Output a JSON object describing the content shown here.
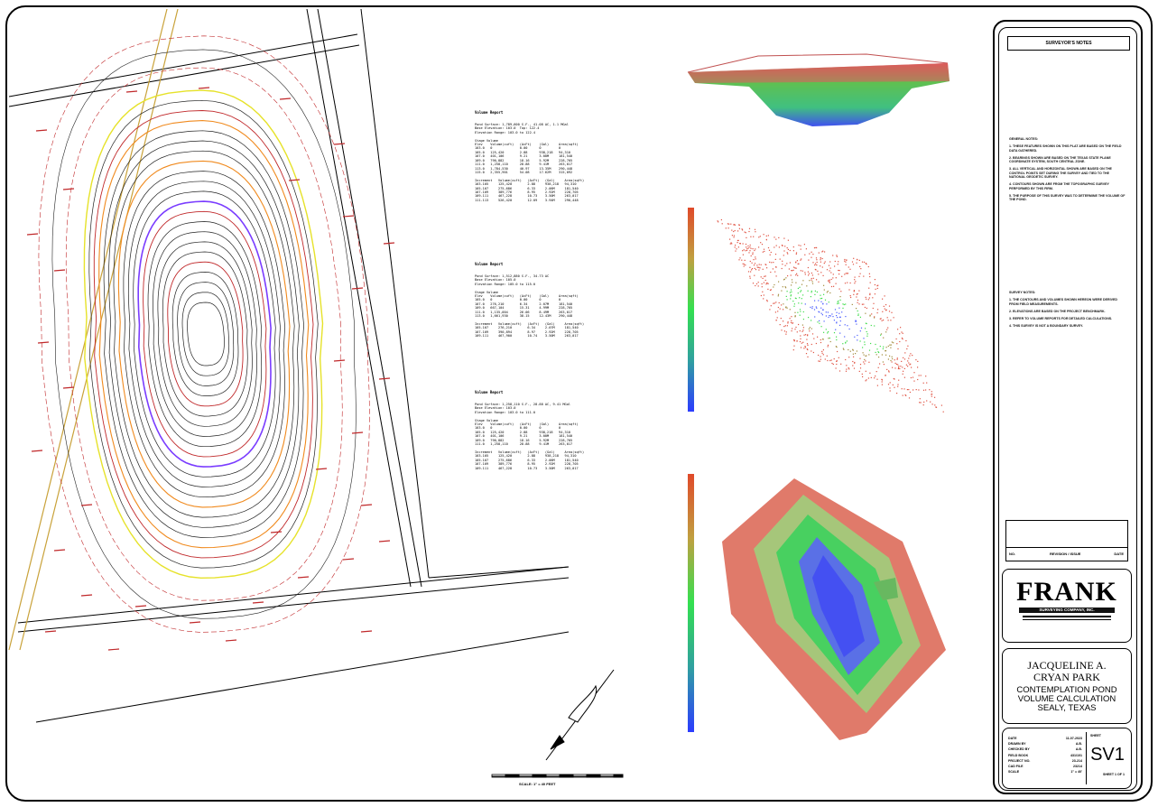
{
  "drawing": {
    "title_block": {
      "surveyors_notes_title": "SURVEYOR'S NOTES",
      "general_notes": [
        "GENERAL NOTES:",
        "1. THESE FEATURES SHOWN ON THIS PLAT ARE BASED ON THE FIELD DATA GATHERED.",
        "2. BEARINGS SHOWN ARE BASED ON THE TEXAS STATE PLANE COORDINATE SYSTEM, SOUTH CENTRAL ZONE.",
        "3. ALL VERTICAL AND HORIZONTAL SHOWN ARE BASED ON THE CONTROL POINTS SET DURING THE SURVEY AND TIED TO THE NATIONAL GEODETIC SURVEY.",
        "4. CONTOURS SHOWN ARE FROM THE TOPOGRAPHIC SURVEY PERFORMED BY THIS FIRM.",
        "5. THE PURPOSE OF THIS SURVEY WAS TO DETERMINE THE VOLUME OF THE POND."
      ],
      "survey_notes": [
        "SURVEY NOTES:",
        "1. THE CONTOURS AND VOLUMES SHOWN HEREON WERE DERIVED FROM FIELD MEASUREMENTS.",
        "2. ELEVATIONS ARE BASED ON THE PROJECT BENCHMARK.",
        "3. REFER TO VOLUME REPORTS FOR DETAILED CALCULATIONS.",
        "4. THIS SURVEY IS NOT A BOUNDARY SURVEY."
      ],
      "revision_headers": [
        "NO.",
        "REVISION / ISSUE",
        "DATE"
      ],
      "firm": {
        "name": "FRANK",
        "subtitle": "SURVEYING COMPANY, INC."
      },
      "project": {
        "name_line1": "JACQUELINE A.",
        "name_line2": "CRYAN PARK",
        "desc_line1": "CONTEMPLATION POND",
        "desc_line2": "VOLUME CALCULATION",
        "desc_line3": "SEALY, TEXAS"
      },
      "info_rows": [
        {
          "label": "DATE",
          "value": "11-07-2023"
        },
        {
          "label": "DRAWN BY",
          "value": "A.B."
        },
        {
          "label": "CHECKED BY",
          "value": "A.B."
        },
        {
          "label": "FIELD BOOK",
          "value": "431/101"
        },
        {
          "label": "PROJECT NO.",
          "value": "23-214"
        },
        {
          "label": "CAD FILE",
          "value": "23214"
        },
        {
          "label": "SCALE",
          "value": "1\" = 40'"
        }
      ],
      "sheet_label": "SHEET",
      "sheet_number": "SV1",
      "sheet_of": "SHEET 1 OF 1"
    },
    "volume_reports": [
      {
        "title": "Volume Report",
        "lines": [
          "Pond Surface: 1,789,600 S.F., 41.08 AC, 1.1 MGal",
          "Base Elevation: 103.0  Top: 122.4",
          "Elevation Range: 103.0 to 122.4",
          "",
          "Stage Volume",
          "Elev    Volume(cuft)   (AcFt)    (Gal)     Area(sqft)",
          "103.0   0              0.00      0         0",
          "105.0   125,420        2.88      938,218   94,310",
          "107.0   401,106        9.21      3.00M     181,540",
          "109.0   790,882        18.16     5.92M     228,705",
          "111.0   1,258,110      28.88     9.41M     263,017",
          "113.0   1,784,530      40.97     13.35M    290,448",
          "115.0   2,355,901      54.08     17.62M    315,092",
          "",
          "Increment   Volume(cuft)   (AcFt)   (Gal)     Area(sqft)",
          "103-105     125,420        2.88     938,218   94,310",
          "105-107     275,686        6.33     2.06M     181,540",
          "107-109     389,776        8.95     2.92M     228,705",
          "109-111     467,228        10.73    3.50M     263,017",
          "111-113     526,420        12.09    3.94M     290,448"
        ]
      },
      {
        "title": "Volume Report",
        "lines": [
          "Pond Surface: 1,512,880 S.F., 34.73 AC",
          "Base Elevation: 105.0",
          "Elevation Range: 105.0 to 115.0",
          "",
          "Stage Volume",
          "Elev    Volume(cuft)   (AcFt)    (Gal)     Area(sqft)",
          "105.0   0              0.00      0         0",
          "107.0   276,210        6.34      2.07M     181,540",
          "109.0   667,104        15.31     4.99M     228,705",
          "111.0   1,135,004      26.06     8.49M     263,017",
          "113.0   1,661,930      38.15     12.43M    290,448",
          "",
          "Increment   Volume(cuft)   (AcFt)   (Gal)     Area(sqft)",
          "105-107     276,210        6.34     2.07M     181,540",
          "107-109     390,894        8.97     2.92M     228,705",
          "109-111     467,900        10.74    3.50M     263,017"
        ]
      },
      {
        "title": "Volume Report",
        "lines": [
          "Pond Surface: 1,258,110 S.F., 28.88 AC, 9.41 MGal",
          "Base Elevation: 103.0",
          "Elevation Range: 103.0 to 111.0",
          "",
          "Stage Volume",
          "Elev    Volume(cuft)   (AcFt)    (Gal)     Area(sqft)",
          "103.0   0              0.00      0         0",
          "105.0   125,420        2.88      938,218   94,310",
          "107.0   401,106        9.21      3.00M     181,540",
          "109.0   790,882        18.16     5.92M     228,705",
          "111.0   1,258,110      28.88     9.41M     263,017",
          "",
          "Increment   Volume(cuft)   (AcFt)   (Gal)     Area(sqft)",
          "103-105     125,420        2.88     938,218   94,310",
          "105-107     275,686        6.33     2.06M     181,540",
          "107-109     389,776        8.95     2.92M     228,705",
          "109-111     467,228        10.73    3.50M     263,017"
        ]
      }
    ],
    "scale_text": "SCALE: 1\" = 40 FEET",
    "colors": {
      "contour_major": "#222222",
      "contour_red": "#c0282a",
      "contour_purple": "#7a3cff",
      "contour_orange": "#f08a1e",
      "edge_yellow": "#e6e22a",
      "rail": "#c9a23a",
      "surf_low": "#4a5cff",
      "surf_mid": "#3ddc4a",
      "surf_high": "#e05444"
    }
  }
}
